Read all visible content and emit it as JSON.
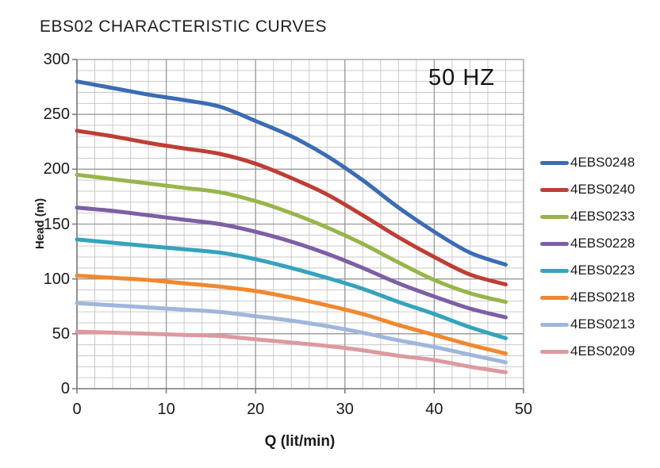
{
  "title": "EBS02 CHARACTERISTIC CURVES",
  "annotation": "50 HZ",
  "axes": {
    "y_title": "Head (m)",
    "x_title": "Q (lit/min)"
  },
  "chart_data": {
    "type": "line",
    "title": "EBS02 CHARACTERISTIC CURVES",
    "annotation": "50 HZ",
    "xlabel": "Q (lit/min)",
    "ylabel": "Head (m)",
    "xlim": [
      0,
      50
    ],
    "ylim": [
      0,
      300
    ],
    "x_major_ticks": [
      0,
      10,
      20,
      30,
      40,
      50
    ],
    "y_major_ticks": [
      0,
      50,
      100,
      150,
      200,
      250,
      300
    ],
    "x_minor_step": 2,
    "y_minor_step": 10,
    "grid": "major+minor",
    "legend_position": "right",
    "x": [
      0,
      4,
      8,
      12,
      16,
      20,
      24,
      28,
      32,
      36,
      40,
      44,
      48
    ],
    "series": [
      {
        "name": "4EBS0248",
        "color": "#3B6CB4",
        "values": [
          280,
          274,
          268,
          263,
          257,
          244,
          230,
          212,
          190,
          165,
          143,
          124,
          113
        ]
      },
      {
        "name": "4EBS0240",
        "color": "#BE3E36",
        "values": [
          235,
          230,
          224,
          219,
          214,
          205,
          192,
          177,
          158,
          138,
          120,
          104,
          95
        ]
      },
      {
        "name": "4EBS0233",
        "color": "#98B54B",
        "values": [
          195,
          191,
          187,
          183,
          179,
          171,
          160,
          147,
          132,
          115,
          99,
          87,
          79
        ]
      },
      {
        "name": "4EBS0228",
        "color": "#7D5FA5",
        "values": [
          165,
          162,
          158,
          154,
          150,
          143,
          134,
          123,
          110,
          96,
          84,
          73,
          65
        ]
      },
      {
        "name": "4EBS0223",
        "color": "#35A3BC",
        "values": [
          136,
          133,
          130,
          127,
          124,
          118,
          110,
          101,
          91,
          79,
          68,
          56,
          46
        ]
      },
      {
        "name": "4EBS0218",
        "color": "#F0882F",
        "values": [
          103,
          101,
          99,
          96,
          93,
          89,
          83,
          76,
          68,
          58,
          49,
          40,
          32
        ]
      },
      {
        "name": "4EBS0213",
        "color": "#A0B6DB",
        "values": [
          78,
          76,
          74,
          72,
          70,
          66,
          62,
          57,
          51,
          44,
          38,
          31,
          24
        ]
      },
      {
        "name": "4EBS0209",
        "color": "#DC9AA0",
        "values": [
          52,
          51,
          50,
          49,
          48,
          45,
          42,
          39,
          35,
          30,
          26,
          20,
          15
        ]
      }
    ],
    "style": {
      "minor_grid_color": "#CACACA",
      "major_grid_color": "#999999",
      "axis_color": "#7E7E7E",
      "line_width": 5
    }
  }
}
